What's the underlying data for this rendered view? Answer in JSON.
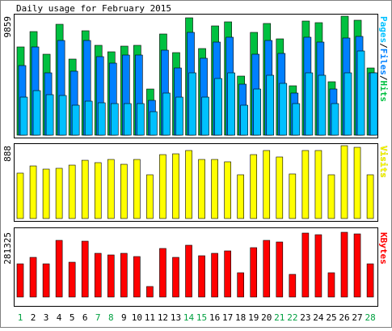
{
  "chart_data": [
    {
      "type": "bar",
      "title": "Daily usage for February 2015",
      "ylim": [
        0,
        9859
      ],
      "yticks": [
        9859
      ],
      "legend_separator": "/",
      "series": [
        {
          "name": "Pages",
          "color": "#00c0ff",
          "values": [
            3152,
            3689,
            3354,
            3287,
            2482,
            2817,
            2683,
            2616,
            2616,
            2616,
            1945,
            3488,
            3152,
            5164,
            3152,
            4695,
            5164,
            2482,
            3823,
            4963,
            4292,
            2616,
            5164,
            4963,
            2616,
            5164,
            6975,
            5164
          ]
        },
        {
          "name": "Files",
          "color": "#0080ff",
          "values": [
            5768,
            7311,
            5164,
            7847,
            5299,
            7847,
            6506,
            5969,
            6640,
            6640,
            2884,
            7042,
            5567,
            8518,
            6372,
            7713,
            8116,
            4225,
            6707,
            7847,
            6774,
            3488,
            8116,
            7713,
            3823,
            8049,
            8183,
            5164
          ]
        },
        {
          "name": "Hits",
          "color": "#00c040",
          "values": [
            7311,
            8585,
            6707,
            9189,
            6305,
            8652,
            7445,
            6908,
            7378,
            7445,
            3823,
            8384,
            6841,
            9725,
            7177,
            9054,
            9390,
            4896,
            8518,
            9256,
            7981,
            4091,
            9457,
            9323,
            4427,
            9859,
            9524,
            5567
          ]
        }
      ]
    },
    {
      "type": "bar",
      "ylim": [
        0,
        888
      ],
      "yticks": [
        888
      ],
      "series": [
        {
          "name": "Visits",
          "color": "#ffff00",
          "values": [
            553,
            641,
            602,
            612,
            651,
            710,
            681,
            720,
            661,
            720,
            533,
            779,
            789,
            829,
            720,
            720,
            691,
            533,
            779,
            829,
            750,
            543,
            829,
            829,
            533,
            888,
            868,
            533
          ]
        }
      ]
    },
    {
      "type": "bar",
      "ylim": [
        0,
        281325
      ],
      "yticks": [
        281325
      ],
      "series": [
        {
          "name": "KBytes",
          "color": "#ff0000",
          "values": [
            144181,
            172313,
            144181,
            246162,
            151214,
            242645,
            189896,
            182863,
            189896,
            175830,
            45716,
            210996,
            172313,
            225062,
            179347,
            189896,
            200446,
            105498,
            214513,
            246162,
            239129,
            98465,
            277808,
            270778,
            105498,
            281325,
            274295,
            144181
          ]
        }
      ],
      "categories": [
        "1",
        "2",
        "3",
        "4",
        "5",
        "6",
        "7",
        "8",
        "9",
        "10",
        "11",
        "12",
        "13",
        "14",
        "15",
        "16",
        "17",
        "18",
        "19",
        "20",
        "21",
        "22",
        "23",
        "24",
        "25",
        "26",
        "27",
        "28"
      ],
      "category_colors": [
        "#00a040",
        "#000000",
        "#000000",
        "#000000",
        "#000000",
        "#000000",
        "#00a040",
        "#00a040",
        "#000000",
        "#000000",
        "#000000",
        "#000000",
        "#000000",
        "#00a040",
        "#00a040",
        "#000000",
        "#000000",
        "#000000",
        "#000000",
        "#000000",
        "#00a040",
        "#00a040",
        "#000000",
        "#000000",
        "#000000",
        "#000000",
        "#000000",
        "#00a040"
      ]
    }
  ]
}
